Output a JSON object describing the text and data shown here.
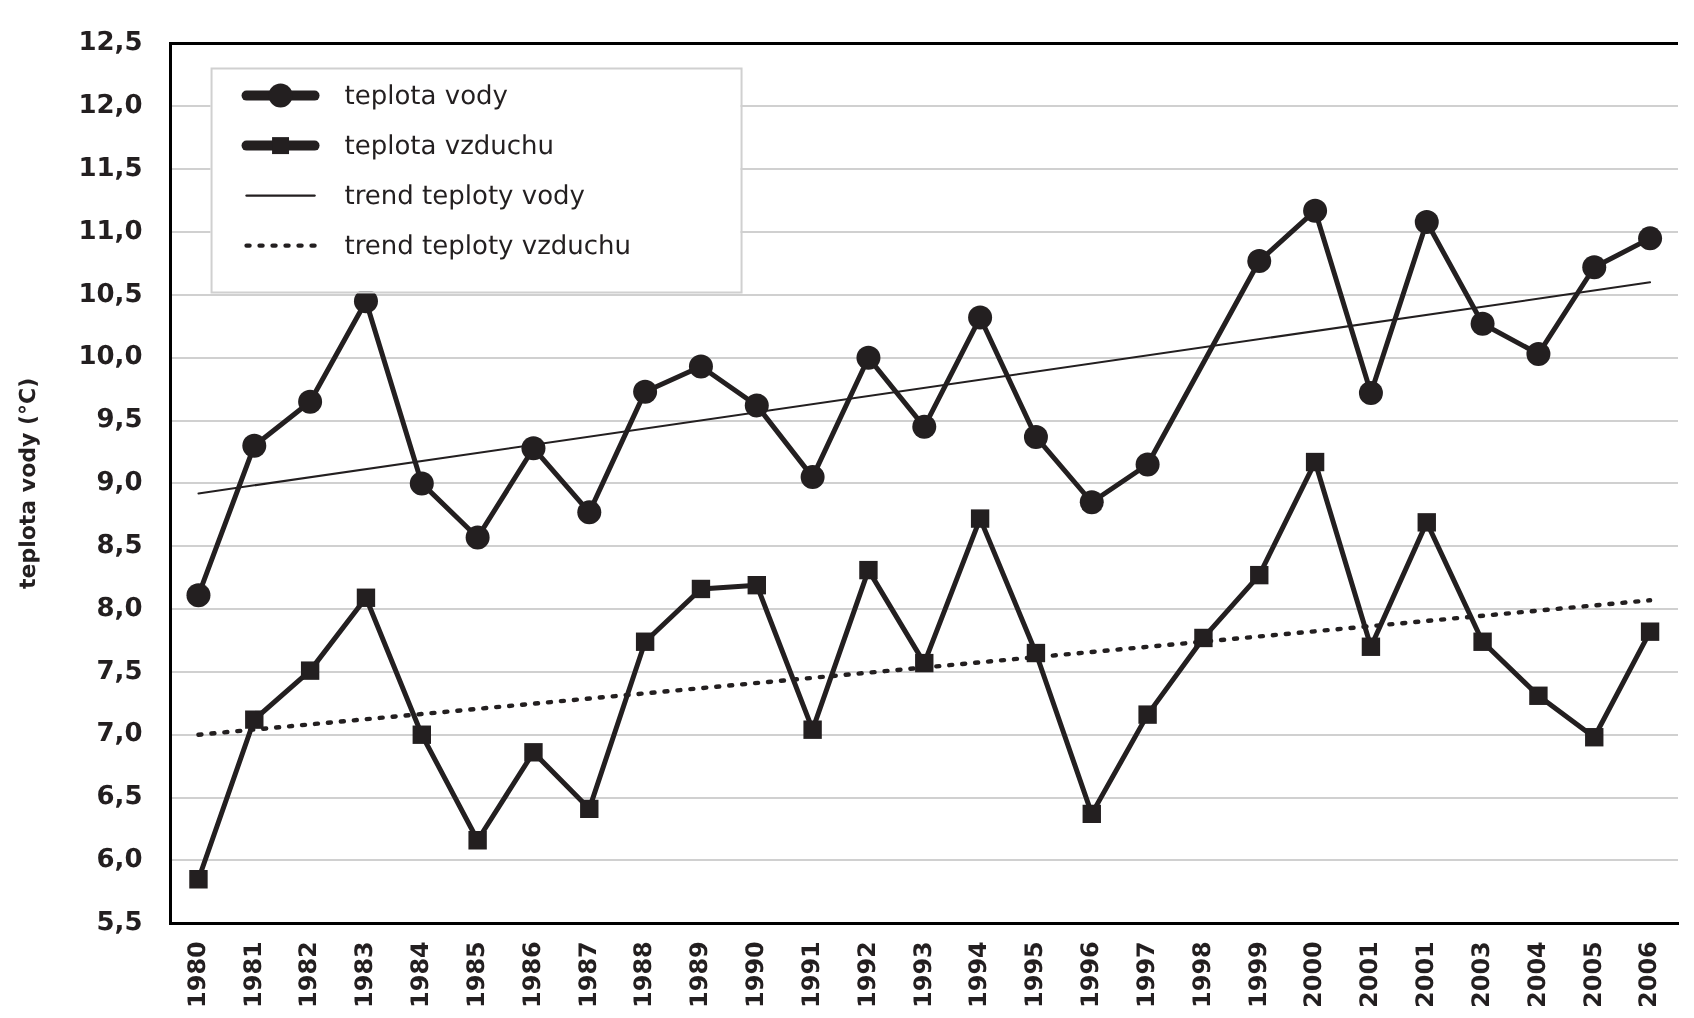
{
  "chart_data": {
    "type": "line",
    "ylabel": "teplota vody (°C)",
    "categories": [
      "1980",
      "1981",
      "1982",
      "1983",
      "1984",
      "1985",
      "1986",
      "1987",
      "1988",
      "1989",
      "1990",
      "1991",
      "1992",
      "1993",
      "1994",
      "1995",
      "1996",
      "1997",
      "1998",
      "1999",
      "2000",
      "2001",
      "2001",
      "2003",
      "2004",
      "2005",
      "2006"
    ],
    "series": [
      {
        "name": "teplota vody",
        "color": "#231f20",
        "marker": "circle",
        "line_style": "solid",
        "values": [
          8.11,
          9.3,
          9.65,
          10.45,
          9.0,
          8.57,
          9.28,
          8.77,
          9.73,
          9.93,
          9.62,
          9.05,
          10.0,
          9.45,
          10.32,
          9.37,
          8.85,
          9.15,
          null,
          10.77,
          11.17,
          9.72,
          11.08,
          10.27,
          10.03,
          10.72,
          10.95
        ]
      },
      {
        "name": "teplota vzduchu",
        "color": "#231f20",
        "marker": "square",
        "line_style": "solid",
        "values": [
          5.85,
          7.12,
          7.51,
          8.09,
          7.0,
          6.16,
          6.86,
          6.41,
          7.74,
          8.16,
          8.19,
          7.04,
          8.31,
          7.57,
          8.72,
          7.65,
          6.37,
          7.16,
          7.77,
          8.27,
          9.17,
          7.7,
          8.69,
          7.74,
          7.31,
          6.98,
          7.82
        ]
      },
      {
        "name": "trend teploty vody",
        "type": "line",
        "color": "#231f20",
        "marker": "none",
        "line_style": "solid",
        "values": [
          8.92,
          null,
          null,
          null,
          null,
          null,
          null,
          null,
          null,
          null,
          null,
          null,
          null,
          null,
          null,
          null,
          null,
          null,
          null,
          null,
          null,
          null,
          null,
          null,
          null,
          null,
          10.6
        ]
      },
      {
        "name": "trend teploty vzduchu",
        "type": "line",
        "color": "#231f20",
        "marker": "none",
        "line_style": "dotted",
        "values": [
          7.0,
          null,
          null,
          null,
          null,
          null,
          null,
          null,
          null,
          null,
          null,
          null,
          null,
          null,
          null,
          null,
          null,
          null,
          null,
          null,
          null,
          null,
          null,
          null,
          null,
          null,
          8.07
        ]
      }
    ],
    "ylim": [
      5.5,
      12.5
    ],
    "yticks": [
      {
        "value": 5.5,
        "label": "5,5"
      },
      {
        "value": 6,
        "label": "6,0"
      },
      {
        "value": 6.5,
        "label": "6,5"
      },
      {
        "value": 7,
        "label": "7,0"
      },
      {
        "value": 7.5,
        "label": "7,5"
      },
      {
        "value": 8,
        "label": "8,0"
      },
      {
        "value": 8.5,
        "label": "8,5"
      },
      {
        "value": 9,
        "label": "9,0"
      },
      {
        "value": 9.5,
        "label": "9,5"
      },
      {
        "value": 10,
        "label": "10,0"
      },
      {
        "value": 10.5,
        "label": "10,5"
      },
      {
        "value": 11,
        "label": "11,0"
      },
      {
        "value": 11.5,
        "label": "11,5"
      },
      {
        "value": 12,
        "label": "12,0"
      },
      {
        "value": 12.5,
        "label": "12,5"
      }
    ],
    "grid": "y",
    "legend": "top left"
  }
}
